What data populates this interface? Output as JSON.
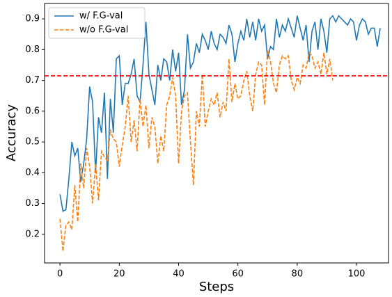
{
  "chart_data": {
    "type": "line",
    "xlabel": "Steps",
    "ylabel": "Accuracy",
    "xlim": [
      -5.2,
      110.8
    ],
    "ylim": [
      0.107,
      0.95
    ],
    "xticks": [
      0,
      20,
      40,
      60,
      80,
      100
    ],
    "yticks": [
      0.2,
      0.3,
      0.4,
      0.5,
      0.6,
      0.7,
      0.8,
      0.9
    ],
    "legend": "upper left",
    "reference_lines": [
      {
        "y": 0.715,
        "color": "#ff0000",
        "style": "dashed"
      }
    ],
    "series": [
      {
        "name": "w/ F.G-val",
        "color": "#1f77b4",
        "style": "solid",
        "x": [
          0,
          1,
          2,
          3,
          4,
          5,
          6,
          7,
          8,
          9,
          10,
          11,
          12,
          13,
          14,
          15,
          16,
          17,
          18,
          19,
          20,
          21,
          22,
          23,
          24,
          25,
          26,
          27,
          28,
          29,
          30,
          31,
          32,
          33,
          34,
          35,
          36,
          37,
          38,
          39,
          40,
          41,
          42,
          43,
          44,
          45,
          46,
          47,
          48,
          49,
          50,
          51,
          52,
          53,
          54,
          55,
          56,
          57,
          58,
          59,
          60,
          61,
          62,
          63,
          64,
          65,
          66,
          67,
          68,
          69,
          70,
          71,
          72,
          73,
          74,
          75,
          76,
          77,
          78,
          79,
          80,
          81,
          82,
          83,
          84,
          85,
          86,
          87,
          88,
          89,
          90,
          91,
          92,
          93,
          94,
          95,
          96,
          97,
          98,
          99,
          100,
          101,
          102,
          103,
          104,
          105,
          106,
          107,
          108
        ],
        "values": [
          0.33,
          0.275,
          0.28,
          0.38,
          0.5,
          0.455,
          0.48,
          0.37,
          0.43,
          0.51,
          0.68,
          0.63,
          0.4,
          0.58,
          0.53,
          0.66,
          0.38,
          0.64,
          0.53,
          0.77,
          0.78,
          0.62,
          0.69,
          0.69,
          0.72,
          0.77,
          0.65,
          0.63,
          0.75,
          0.89,
          0.72,
          0.67,
          0.62,
          0.75,
          0.7,
          0.77,
          0.76,
          0.7,
          0.8,
          0.73,
          0.79,
          0.62,
          0.67,
          0.85,
          0.74,
          0.76,
          0.82,
          0.79,
          0.85,
          0.83,
          0.8,
          0.86,
          0.82,
          0.8,
          0.85,
          0.84,
          0.82,
          0.88,
          0.85,
          0.76,
          0.82,
          0.86,
          0.83,
          0.9,
          0.84,
          0.89,
          0.83,
          0.9,
          0.86,
          0.88,
          0.77,
          0.81,
          0.8,
          0.9,
          0.84,
          0.88,
          0.86,
          0.9,
          0.87,
          0.84,
          0.91,
          0.87,
          0.83,
          0.88,
          0.76,
          0.86,
          0.89,
          0.8,
          0.9,
          0.86,
          0.79,
          0.9,
          0.91,
          0.89,
          0.91,
          0.9,
          0.89,
          0.88,
          0.9,
          0.89,
          0.83,
          0.88,
          0.9,
          0.89,
          0.85,
          0.87,
          0.87,
          0.81,
          0.87
        ]
      },
      {
        "name": "w/o F.G-val",
        "color": "#ff7f0e",
        "style": "dashed",
        "x": [
          0,
          1,
          2,
          3,
          4,
          5,
          6,
          7,
          8,
          9,
          10,
          11,
          12,
          13,
          14,
          15,
          16,
          17,
          18,
          19,
          20,
          21,
          22,
          23,
          24,
          25,
          26,
          27,
          28,
          29,
          30,
          31,
          32,
          33,
          34,
          35,
          36,
          37,
          38,
          39,
          40,
          41,
          42,
          43,
          44,
          45,
          46,
          47,
          48,
          49,
          50,
          51,
          52,
          53,
          54,
          55,
          56,
          57,
          58,
          59,
          60,
          61,
          62,
          63,
          64,
          65,
          66,
          67,
          68,
          69,
          70,
          71,
          72,
          73,
          74,
          75,
          76,
          77,
          78,
          79,
          80,
          81,
          82,
          83,
          84,
          85,
          86,
          87,
          88,
          89,
          90,
          91,
          92
        ],
        "values": [
          0.25,
          0.145,
          0.23,
          0.24,
          0.215,
          0.36,
          0.24,
          0.43,
          0.35,
          0.48,
          0.42,
          0.3,
          0.43,
          0.31,
          0.47,
          0.45,
          0.44,
          0.54,
          0.51,
          0.5,
          0.42,
          0.49,
          0.55,
          0.65,
          0.5,
          0.57,
          0.47,
          0.64,
          0.55,
          0.62,
          0.48,
          0.58,
          0.55,
          0.43,
          0.52,
          0.47,
          0.62,
          0.65,
          0.71,
          0.65,
          0.43,
          0.6,
          0.65,
          0.66,
          0.5,
          0.36,
          0.6,
          0.55,
          0.72,
          0.55,
          0.6,
          0.64,
          0.62,
          0.66,
          0.58,
          0.63,
          0.6,
          0.77,
          0.63,
          0.69,
          0.64,
          0.65,
          0.7,
          0.73,
          0.65,
          0.6,
          0.72,
          0.76,
          0.75,
          0.62,
          0.8,
          0.76,
          0.69,
          0.66,
          0.75,
          0.78,
          0.77,
          0.78,
          0.7,
          0.67,
          0.71,
          0.69,
          0.75,
          0.74,
          0.79,
          0.78,
          0.74,
          0.76,
          0.72,
          0.79,
          0.72,
          0.77,
          0.7
        ]
      }
    ]
  }
}
